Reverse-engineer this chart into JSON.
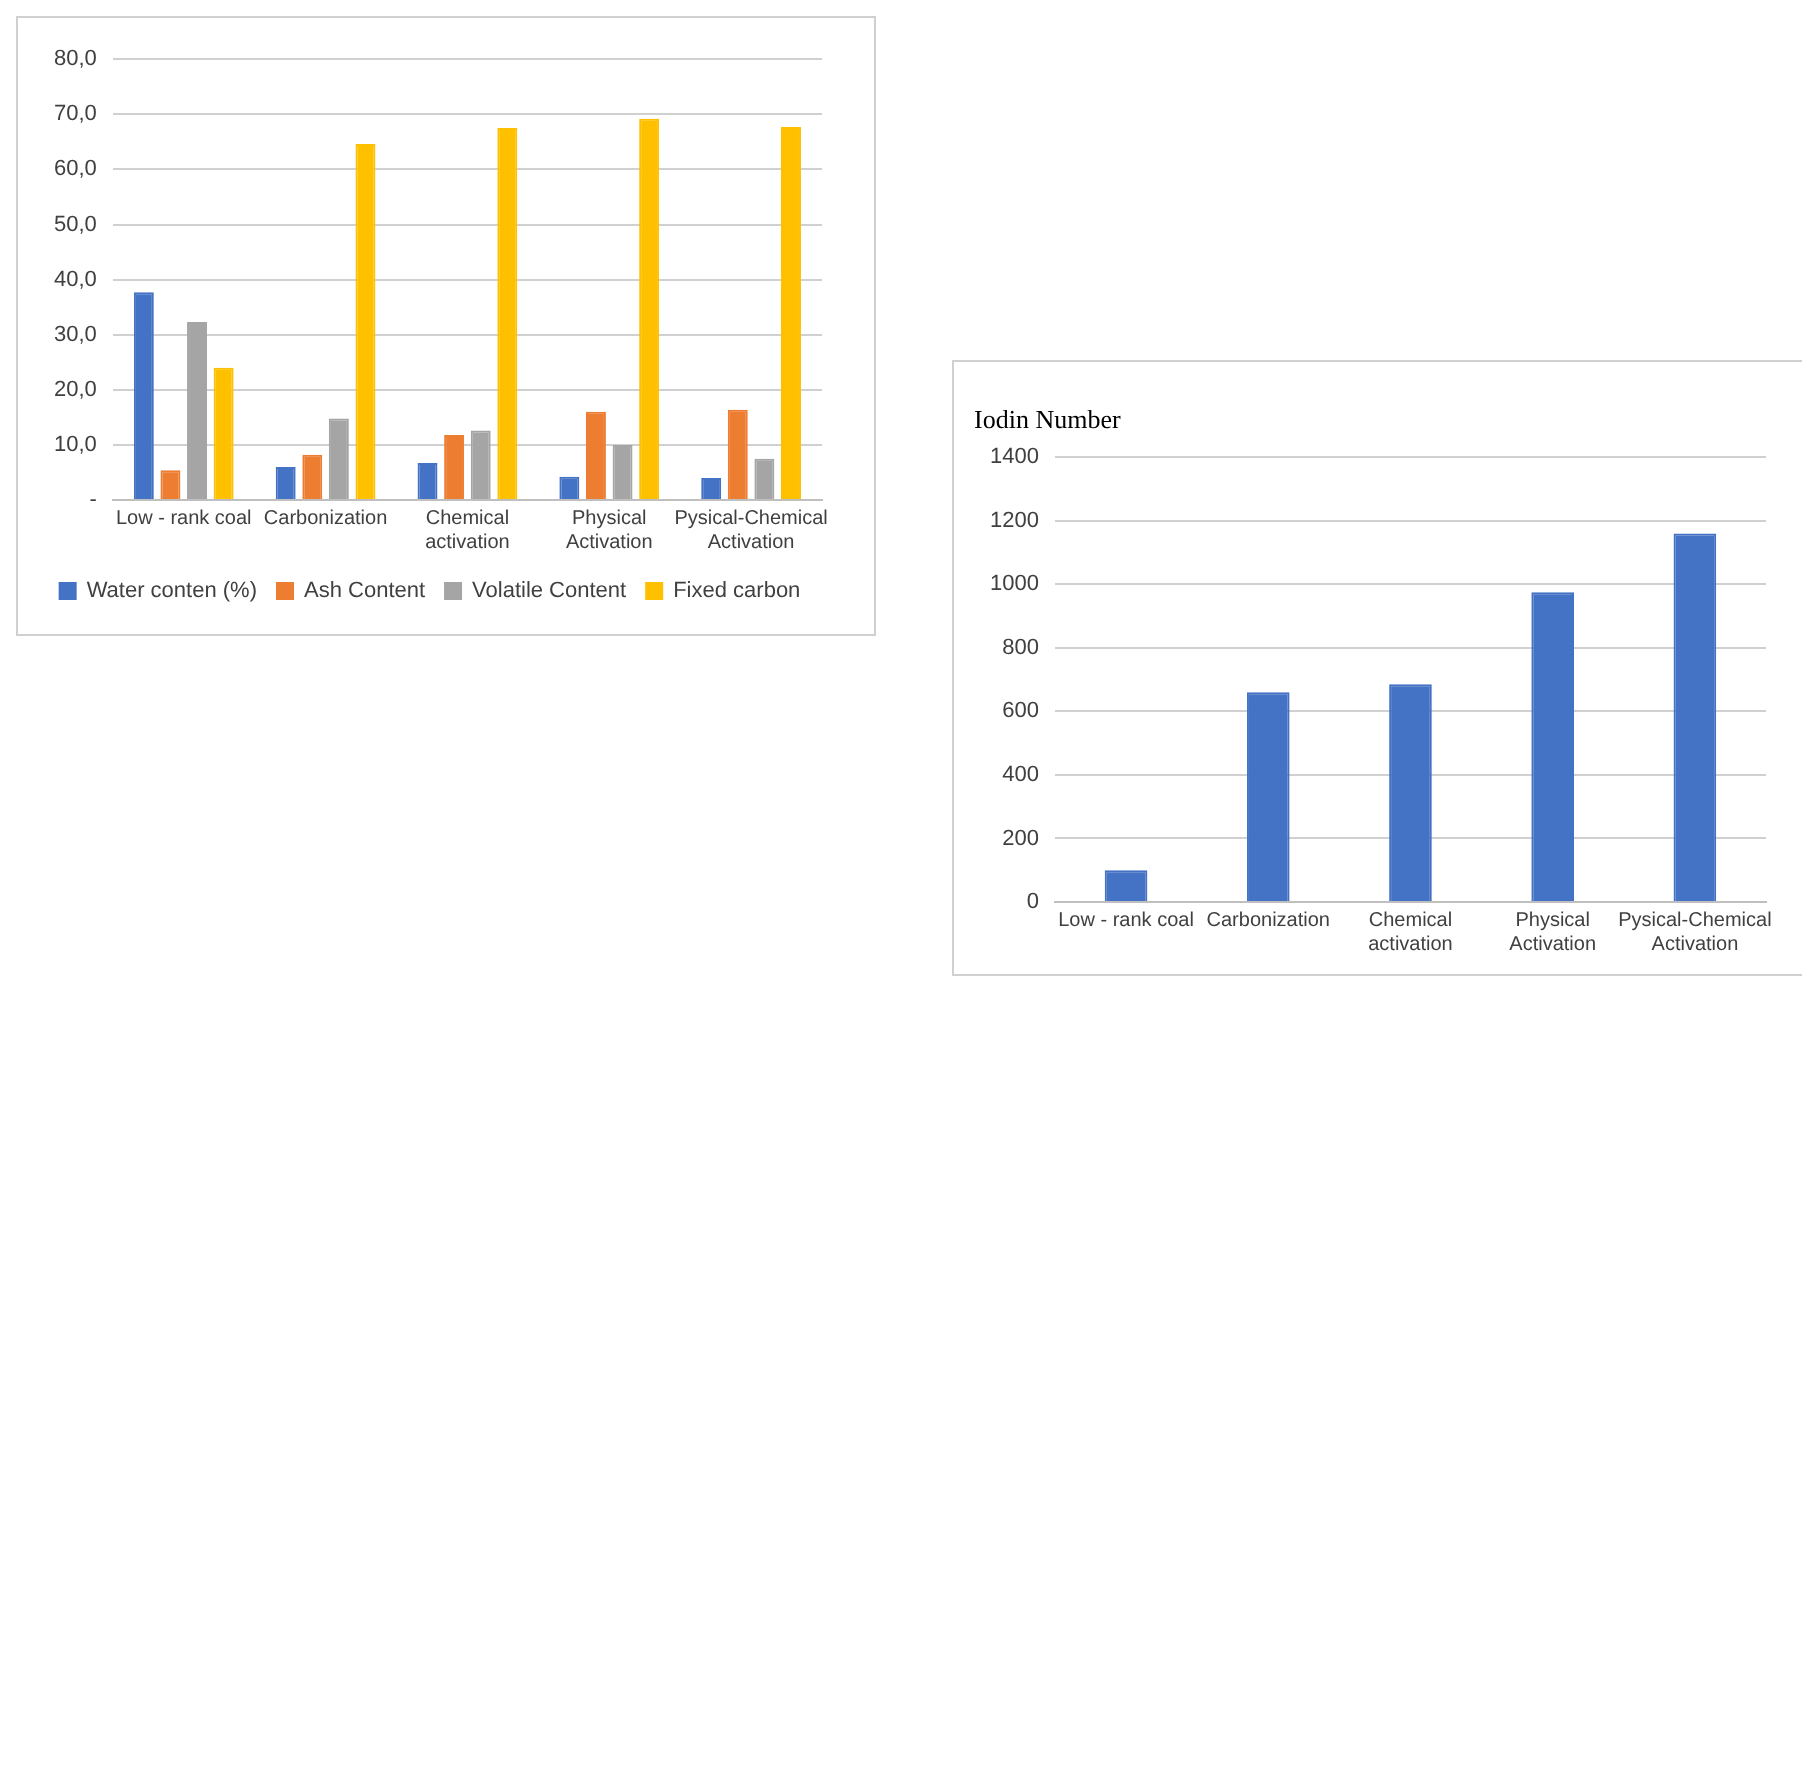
{
  "chart_data": [
    {
      "type": "bar",
      "categories": [
        "Low - rank coal",
        "Carbonization",
        "Chemical activation",
        "Physical Activation",
        "Pysical-Chemical Activation"
      ],
      "series": [
        {
          "name": "Water conten (%)",
          "color": "#4472c4",
          "values": [
            37.7,
            6.0,
            6.7,
            4.2,
            4.0
          ]
        },
        {
          "name": "Ash Content",
          "color": "#ed7d31",
          "values": [
            5.4,
            8.2,
            11.8,
            16.0,
            16.4
          ]
        },
        {
          "name": "Volatile Content",
          "color": "#a5a5a5",
          "values": [
            32.3,
            14.8,
            12.6,
            10.0,
            7.5
          ]
        },
        {
          "name": "Fixed carbon",
          "color": "#ffc000",
          "values": [
            24.0,
            64.6,
            67.5,
            69.2,
            67.7
          ]
        }
      ],
      "ylim": [
        0,
        80
      ],
      "yticks": [
        {
          "value": 0,
          "label": "-"
        },
        {
          "value": 10,
          "label": "10,0"
        },
        {
          "value": 20,
          "label": "20,0"
        },
        {
          "value": 30,
          "label": "30,0"
        },
        {
          "value": 40,
          "label": "40,0"
        },
        {
          "value": 50,
          "label": "50,0"
        },
        {
          "value": 60,
          "label": "60,0"
        },
        {
          "value": 70,
          "label": "70,0"
        },
        {
          "value": 80,
          "label": "80,0"
        }
      ],
      "grid": "y",
      "legend": "bottom"
    },
    {
      "type": "bar",
      "title": "Iodin Number",
      "categories": [
        "Low - rank coal",
        "Carbonization",
        "Chemical activation",
        "Physical Activation",
        "Pysical-Chemical Activation"
      ],
      "series": [
        {
          "color": "#4472c4",
          "values": [
            100,
            660,
            685,
            975,
            1160
          ]
        }
      ],
      "ylim": [
        0,
        1400
      ],
      "yticks": [
        0,
        200,
        400,
        600,
        800,
        1000,
        1200,
        1400
      ],
      "grid": "y",
      "legend": false
    }
  ]
}
